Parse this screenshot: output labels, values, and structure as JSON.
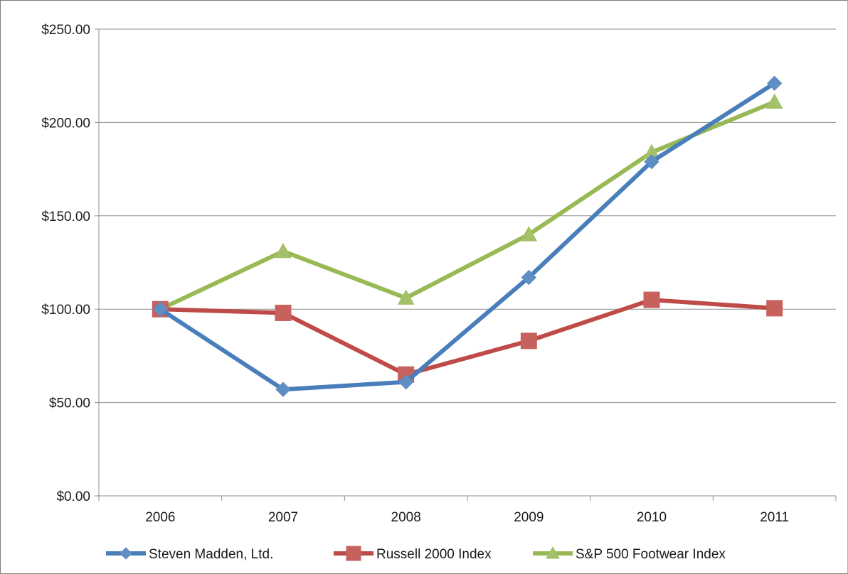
{
  "chart_data": {
    "type": "line",
    "title": "",
    "xlabel": "",
    "ylabel": "",
    "categories": [
      "2006",
      "2007",
      "2008",
      "2009",
      "2010",
      "2011"
    ],
    "ylim": [
      0,
      250
    ],
    "yticks": [
      0,
      50,
      100,
      150,
      200,
      250
    ],
    "ytick_labels": [
      "$0.00",
      "$50.00",
      "$100.00",
      "$150.00",
      "$200.00",
      "$250.00"
    ],
    "grid": true,
    "legend_position": "bottom",
    "series": [
      {
        "name": "Steven Madden, Ltd.",
        "values": [
          100,
          57,
          61,
          117,
          179,
          221
        ],
        "color": "#4a7ebb",
        "marker": "diamond"
      },
      {
        "name": "Russell 2000 Index",
        "values": [
          100,
          98,
          65,
          83,
          105,
          100.5
        ],
        "color": "#be4b48",
        "marker": "square"
      },
      {
        "name": "S&P 500 Footwear Index",
        "values": [
          100,
          131,
          106,
          140,
          184,
          211
        ],
        "color": "#98b954",
        "marker": "triangle"
      }
    ]
  }
}
